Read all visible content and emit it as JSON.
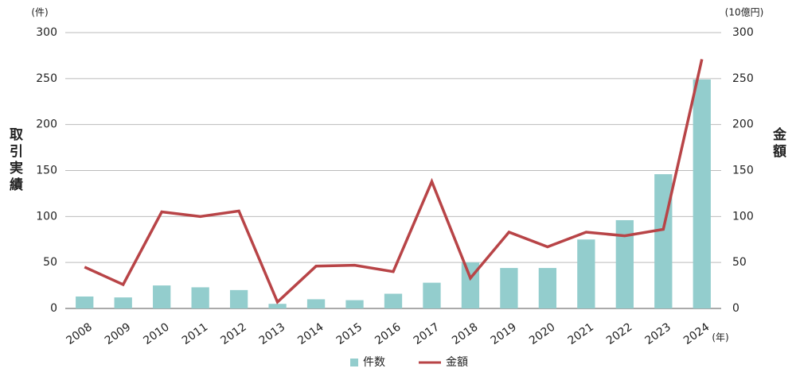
{
  "chart_data": {
    "type": "bar-line",
    "y_unit": "(件)",
    "y2_unit": "(10億円)",
    "x_unit": "(年)",
    "ylabel": "取引実績",
    "y2label": "金額",
    "categories": [
      "2008",
      "2009",
      "2010",
      "2011",
      "2012",
      "2013",
      "2014",
      "2015",
      "2016",
      "2017",
      "2018",
      "2019",
      "2020",
      "2021",
      "2022",
      "2023",
      "2024"
    ],
    "series": [
      {
        "name": "件数",
        "type": "bar",
        "color": "#93cdcd",
        "values": [
          13,
          12,
          25,
          23,
          20,
          5,
          10,
          9,
          16,
          28,
          50,
          44,
          44,
          75,
          96,
          146,
          249
        ]
      },
      {
        "name": "金額",
        "type": "line",
        "axis": "y2",
        "color": "#b84447",
        "values": [
          45,
          26,
          105,
          100,
          106,
          7,
          46,
          47,
          40,
          138,
          33,
          83,
          67,
          83,
          79,
          86,
          271
        ]
      }
    ],
    "ylim": [
      0,
      300
    ],
    "yticks": [
      0,
      50,
      100,
      150,
      200,
      250,
      300
    ],
    "y2lim": [
      0,
      300
    ],
    "y2ticks": [
      0,
      50,
      100,
      150,
      200,
      250,
      300
    ],
    "grid": true
  }
}
